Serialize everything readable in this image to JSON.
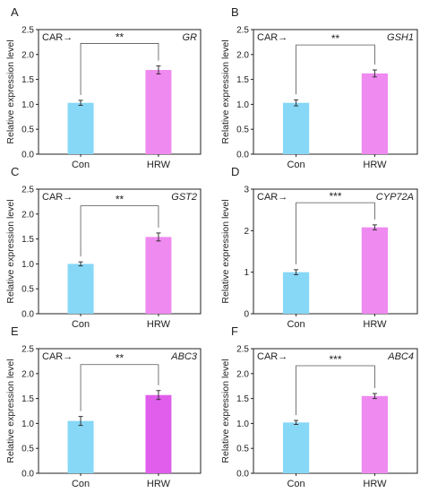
{
  "colors": {
    "con": "#87d7f7",
    "hrw": "#ef8af0",
    "hrw_dark": "#e15eec",
    "axis": "#222222",
    "text": "#222222"
  },
  "chart_data": [
    {
      "panel": "A",
      "type": "bar",
      "treatment_label": "CAR→",
      "gene": "GR",
      "categories": [
        "Con",
        "HRW"
      ],
      "values": [
        1.03,
        1.69
      ],
      "errors": [
        0.05,
        0.08
      ],
      "significance": "**",
      "ylabel": "Relative expression level",
      "ylim": [
        0,
        2.5
      ],
      "yticks": [
        "0.0",
        "0.5",
        "1.0",
        "1.5",
        "2.0",
        "2.5"
      ]
    },
    {
      "panel": "B",
      "type": "bar",
      "treatment_label": "CAR→",
      "gene": "GSH1",
      "categories": [
        "Con",
        "HRW"
      ],
      "values": [
        1.03,
        1.62
      ],
      "errors": [
        0.06,
        0.07
      ],
      "significance": "**",
      "ylabel": "Relative expression level",
      "ylim": [
        0,
        2.5
      ],
      "yticks": [
        "0.0",
        "0.5",
        "1.0",
        "1.5",
        "2.0",
        "2.5"
      ]
    },
    {
      "panel": "C",
      "type": "bar",
      "treatment_label": "CAR→",
      "gene": "GST2",
      "categories": [
        "Con",
        "HRW"
      ],
      "values": [
        1.0,
        1.54
      ],
      "errors": [
        0.04,
        0.08
      ],
      "significance": "**",
      "ylabel": "Relative expression level",
      "ylim": [
        0,
        2.5
      ],
      "yticks": [
        "0.0",
        "0.5",
        "1.0",
        "1.5",
        "2.0",
        "2.5"
      ]
    },
    {
      "panel": "D",
      "type": "bar",
      "treatment_label": "CAR→",
      "gene": "CYP72A",
      "categories": [
        "Con",
        "HRW"
      ],
      "values": [
        1.0,
        2.08
      ],
      "errors": [
        0.06,
        0.06
      ],
      "significance": "***",
      "ylabel": "Relative expression level",
      "ylim": [
        0,
        3
      ],
      "yticks": [
        "0",
        "1",
        "2",
        "3"
      ]
    },
    {
      "panel": "E",
      "type": "bar",
      "treatment_label": "CAR→",
      "gene": "ABC3",
      "categories": [
        "Con",
        "HRW"
      ],
      "values": [
        1.05,
        1.57
      ],
      "errors": [
        0.09,
        0.09
      ],
      "significance": "**",
      "ylabel": "Relative expression level",
      "ylim": [
        0,
        2.5
      ],
      "yticks": [
        "0.0",
        "0.5",
        "1.0",
        "1.5",
        "2.0",
        "2.5"
      ]
    },
    {
      "panel": "F",
      "type": "bar",
      "treatment_label": "CAR→",
      "gene": "ABC4",
      "categories": [
        "Con",
        "HRW"
      ],
      "values": [
        1.02,
        1.55
      ],
      "errors": [
        0.04,
        0.05
      ],
      "significance": "***",
      "ylabel": "Relative expression level",
      "ylim": [
        0,
        2.5
      ],
      "yticks": [
        "0.0",
        "0.5",
        "1.0",
        "1.5",
        "2.0",
        "2.5"
      ]
    }
  ]
}
